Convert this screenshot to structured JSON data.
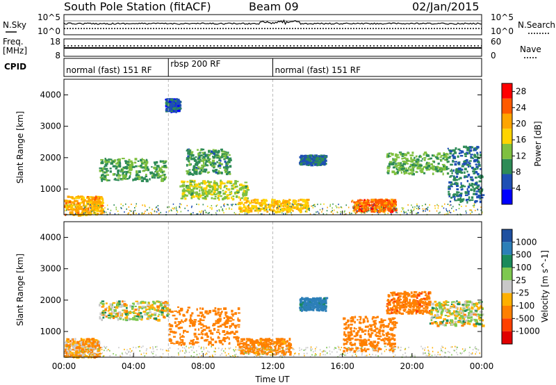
{
  "header": {
    "station": "South Pole Station (fitACF)",
    "beam": "Beam 09",
    "date": "02/Jan/2015"
  },
  "summary": {
    "nsky_label": "N.Sky",
    "nsky_ticks": [
      "10^5",
      "10^0"
    ],
    "nsearch_label": "N.Search",
    "nsearch_ticks": [
      "10^5",
      "10^0"
    ],
    "freq_label": "Freq.",
    "freq_unit": "[MHz]",
    "freq_ticks": [
      "18",
      "8"
    ],
    "nave_label": "Nave",
    "nave_ticks": [
      "60",
      "0"
    ],
    "cpid_label": "CPID",
    "cpid_segments": [
      {
        "label": "normal (fast) 151 RF",
        "start": 0,
        "end": 6
      },
      {
        "label": "rbsp 200 RF",
        "start": 6,
        "end": 12
      },
      {
        "label": "normal (fast) 151 RF",
        "start": 12,
        "end": 24
      }
    ]
  },
  "chart_data": [
    {
      "type": "heatmap",
      "name": "power",
      "xlabel": "Time UT",
      "ylabel": "Slant Range [km]",
      "xlim": [
        0,
        24
      ],
      "ylim": [
        180,
        4500
      ],
      "y_ticks": [
        1000,
        2000,
        3000,
        4000
      ],
      "colorbar": {
        "label": "Power [dB]",
        "ticks": [
          4,
          8,
          12,
          16,
          20,
          24,
          28
        ],
        "range": [
          0,
          30
        ],
        "colors": [
          "#0000ff",
          "#1e4fb4",
          "#2e8b57",
          "#7fc040",
          "#ffd400",
          "#ffa500",
          "#ff5a00",
          "#ff0000"
        ]
      },
      "regions": [
        {
          "t": [
            0,
            2.2
          ],
          "r": [
            200,
            800
          ],
          "value": 20
        },
        {
          "t": [
            2.0,
            5.8
          ],
          "r": [
            1300,
            2000
          ],
          "value": 11
        },
        {
          "t": [
            5.8,
            6.6
          ],
          "r": [
            3500,
            3900
          ],
          "value": 6
        },
        {
          "t": [
            6.6,
            10.5
          ],
          "r": [
            700,
            1300
          ],
          "value": 14
        },
        {
          "t": [
            7.0,
            9.5
          ],
          "r": [
            1500,
            2300
          ],
          "value": 10
        },
        {
          "t": [
            10.0,
            14.0
          ],
          "r": [
            300,
            700
          ],
          "value": 18
        },
        {
          "t": [
            13.5,
            15.0
          ],
          "r": [
            1800,
            2100
          ],
          "value": 7
        },
        {
          "t": [
            16.5,
            19.0
          ],
          "r": [
            300,
            700
          ],
          "value": 24
        },
        {
          "t": [
            18.5,
            22.0
          ],
          "r": [
            1500,
            2200
          ],
          "value": 12
        },
        {
          "t": [
            22.0,
            24.0
          ],
          "r": [
            600,
            2400
          ],
          "value": 8
        }
      ]
    },
    {
      "type": "heatmap",
      "name": "velocity",
      "xlabel": "Time UT",
      "ylabel": "Slant Range [km]",
      "xlim": [
        0,
        24
      ],
      "ylim": [
        180,
        4500
      ],
      "x_ticks": [
        "00:00",
        "04:00",
        "08:00",
        "12:00",
        "16:00",
        "20:00",
        "00:00"
      ],
      "y_ticks": [
        1000,
        2000,
        3000,
        4000
      ],
      "colorbar": {
        "label": "Velocity [m s^-1]",
        "ticks": [
          "1000",
          "500",
          "100",
          "25",
          "-25",
          "-100",
          "-500",
          "-1000"
        ],
        "colors": [
          "#1e50a0",
          "#2c7fb8",
          "#1a8a5a",
          "#7ec850",
          "#c8c8c8",
          "#ffb000",
          "#ff8000",
          "#ff4000",
          "#e00000"
        ]
      },
      "regions": [
        {
          "t": [
            0,
            2.0
          ],
          "r": [
            200,
            800
          ],
          "value": -100
        },
        {
          "t": [
            2.0,
            6.0
          ],
          "r": [
            1400,
            2000
          ],
          "value": 0
        },
        {
          "t": [
            6.0,
            10.0
          ],
          "r": [
            600,
            1800
          ],
          "value": -300
        },
        {
          "t": [
            10.0,
            13.0
          ],
          "r": [
            300,
            800
          ],
          "value": -200
        },
        {
          "t": [
            13.5,
            15.0
          ],
          "r": [
            1700,
            2100
          ],
          "value": 600
        },
        {
          "t": [
            16.0,
            19.0
          ],
          "r": [
            400,
            1500
          ],
          "value": -300
        },
        {
          "t": [
            18.5,
            21.0
          ],
          "r": [
            1600,
            2300
          ],
          "value": -400
        },
        {
          "t": [
            21.0,
            24.0
          ],
          "r": [
            1200,
            2000
          ],
          "value": 0
        }
      ]
    }
  ]
}
